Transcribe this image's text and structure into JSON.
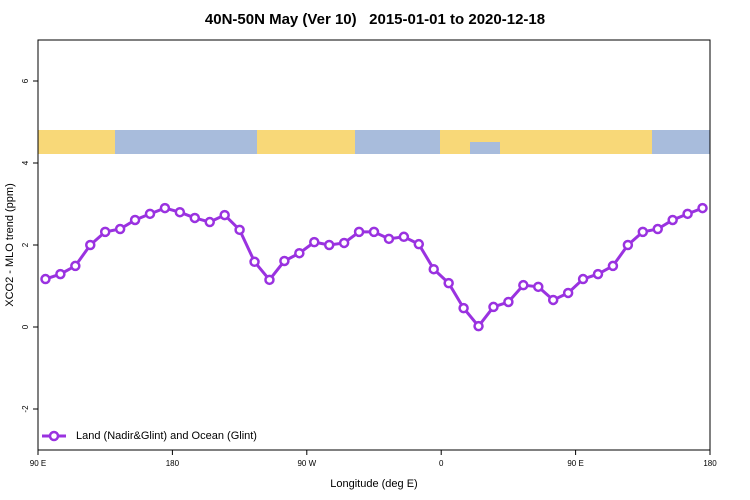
{
  "chart_data": {
    "type": "line",
    "title": "40N-50N May (Ver 10)   2015-01-01 to 2020-12-18",
    "x_label": "Longitude (deg E)",
    "y_label": "XCO2 - MLO trend (ppm)",
    "x": [
      95,
      105,
      115,
      125,
      135,
      145,
      155,
      165,
      175,
      185,
      195,
      205,
      215,
      225,
      235,
      245,
      255,
      265,
      275,
      285,
      295,
      305,
      315,
      325,
      335,
      345,
      355,
      365,
      375,
      385,
      395,
      405,
      415,
      425,
      435,
      445,
      455,
      465,
      475,
      485,
      495,
      505,
      515,
      525,
      535
    ],
    "series": [
      {
        "name": "Land (Nadir&Glint) and Ocean (Glint)",
        "color": "#9a32e0",
        "values": [
          1.17,
          1.29,
          1.49,
          2.0,
          2.32,
          2.39,
          2.61,
          2.76,
          2.9,
          2.8,
          2.66,
          2.56,
          2.73,
          2.37,
          1.59,
          1.15,
          1.61,
          1.8,
          2.07,
          2.0,
          2.05,
          2.32,
          2.32,
          2.15,
          2.2,
          2.02,
          1.41,
          1.07,
          0.46,
          0.02,
          0.49,
          0.61,
          1.02,
          0.98,
          0.66,
          0.83,
          1.17,
          1.29,
          1.49,
          2.0,
          2.32,
          2.39,
          2.61,
          2.76,
          2.9
        ]
      }
    ],
    "xlim": [
      90,
      540
    ],
    "xticks": [
      {
        "value": 90,
        "label": "90 E"
      },
      180,
      {
        "value": 270,
        "label": "90 W"
      },
      {
        "value": 360,
        "label": "0"
      },
      {
        "value": 450,
        "label": "90 E"
      },
      {
        "value": 540,
        "label": "180"
      }
    ],
    "ylim": [
      -3,
      7
    ],
    "yticks": [
      -2,
      0,
      2,
      4,
      6
    ],
    "legend": "bottomleft"
  }
}
